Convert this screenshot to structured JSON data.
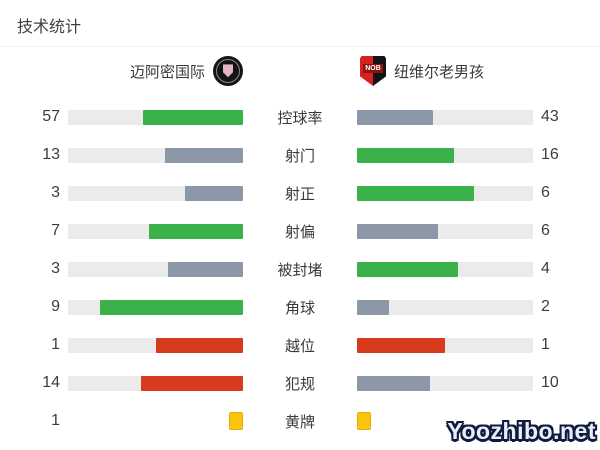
{
  "title": "技术统计",
  "teams": {
    "home": {
      "name": "迈阿密国际"
    },
    "away": {
      "name": "纽维尔老男孩",
      "logo_text": "NOB"
    }
  },
  "watermark": "Yoozhibo.net",
  "colors": {
    "green": "#3bb14a",
    "gray": "#8c98a8",
    "red": "#d83a1e",
    "track": "#ebebeb",
    "yellow_card": "#fcc40e",
    "text": "#3f3f3f"
  },
  "rows": [
    {
      "label": "控球率",
      "home": 57,
      "away": 43,
      "home_color": "green",
      "away_color": "gray",
      "type": "bar"
    },
    {
      "label": "射门",
      "home": 13,
      "away": 16,
      "home_color": "gray",
      "away_color": "green",
      "type": "bar"
    },
    {
      "label": "射正",
      "home": 3,
      "away": 6,
      "home_color": "gray",
      "away_color": "green",
      "type": "bar"
    },
    {
      "label": "射偏",
      "home": 7,
      "away": 6,
      "home_color": "green",
      "away_color": "gray",
      "type": "bar"
    },
    {
      "label": "被封堵",
      "home": 3,
      "away": 4,
      "home_color": "gray",
      "away_color": "green",
      "type": "bar"
    },
    {
      "label": "角球",
      "home": 9,
      "away": 2,
      "home_color": "green",
      "away_color": "gray",
      "type": "bar"
    },
    {
      "label": "越位",
      "home": 1,
      "away": 1,
      "home_color": "red",
      "away_color": "red",
      "type": "bar"
    },
    {
      "label": "犯规",
      "home": 14,
      "away": 10,
      "home_color": "red",
      "away_color": "gray",
      "type": "bar"
    },
    {
      "label": "黄牌",
      "home": 1,
      "away": "",
      "type": "cards"
    }
  ],
  "chart_data": {
    "type": "bar",
    "title": "技术统计",
    "orientation": "horizontal-mirrored",
    "categories": [
      "控球率",
      "射门",
      "射正",
      "射偏",
      "被封堵",
      "角球",
      "越位",
      "犯规",
      "黄牌"
    ],
    "series": [
      {
        "name": "迈阿密国际",
        "values": [
          57,
          13,
          3,
          7,
          3,
          9,
          1,
          14,
          1
        ]
      },
      {
        "name": "纽维尔老男孩",
        "values": [
          43,
          16,
          6,
          6,
          4,
          2,
          1,
          10,
          null
        ]
      }
    ],
    "notes": "fill width = value/(home+away) of track; away yellow-card number hidden behind watermark"
  }
}
